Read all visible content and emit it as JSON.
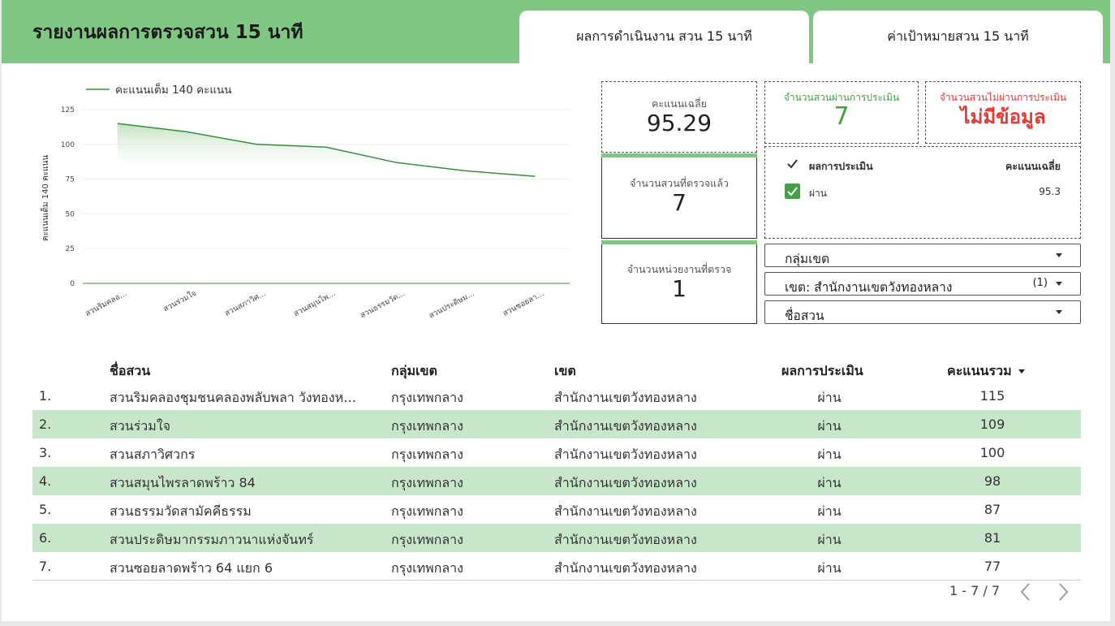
{
  "header": {
    "title": "รายงานผลการตรวจสวน 15 นาที",
    "tabs": [
      {
        "label": "ผลการดำเนินงาน สวน 15 นาที"
      },
      {
        "label": "ค่าเป้าหมายสวน 15 นาที"
      }
    ],
    "bg_color": "#81c784"
  },
  "chart_data": {
    "type": "area",
    "legend": "คะแนนเต็ม 140 คะแนน",
    "ylabel": "คะแนนเต็ม 140 คะแนน",
    "yticks": [
      0,
      25,
      50,
      75,
      100,
      125
    ],
    "ylim": [
      0,
      125
    ],
    "categories": [
      "สวนริมคลอ…",
      "สวนร่วมใจ",
      "สวนสภาวิศ…",
      "สวนสมุนไพ…",
      "สวนธรรมวัด…",
      "สวนประดิษม…",
      "สวนซอยลา…"
    ],
    "series": [
      {
        "name": "คะแนนเต็ม 140 คะแนน",
        "values": [
          115,
          109,
          100,
          98,
          87,
          81,
          77
        ]
      }
    ],
    "color": "#388e3c",
    "grid": true
  },
  "cards": {
    "avg": {
      "label": "คะแนนเฉลี่ย",
      "value": "95.29"
    },
    "pass": {
      "label": "จำนวนสวนผ่านการประเมิน",
      "value": "7",
      "color": "#43a047"
    },
    "fail": {
      "label": "จำนวนสวนไม่ผ่านการประเมิน",
      "value": "ไม่มีข้อมูล",
      "color": "#e53935"
    },
    "checked": {
      "label": "จำนวนสวนที่ตรวจแล้ว",
      "value": "7"
    },
    "units": {
      "label": "จำนวนหน่วยงานที่ตรวจ",
      "value": "1"
    }
  },
  "eval_table": {
    "header_result": "ผลการประเมิน",
    "header_avg": "คะแนนเฉลี่ย",
    "rows": [
      {
        "result": "ผ่าน",
        "avg": "95.3"
      }
    ]
  },
  "filters": {
    "group": {
      "label": "กลุ่มเขต"
    },
    "district": {
      "label": "เขต: สำนักงานเขตวังทองหลาง",
      "count": "(1)"
    },
    "park": {
      "label": "ชื่อสวน"
    }
  },
  "table": {
    "headers": {
      "name": "ชื่อสวน",
      "group": "กลุ่มเขต",
      "district": "เขต",
      "result": "ผลการประเมิน",
      "score": "คะแนนรวม"
    },
    "rows": [
      {
        "no": "1.",
        "name": "สวนริมคลองชุมชนคลองพลับพลา วังทองห…",
        "group": "กรุงเทพกลาง",
        "district": "สำนักงานเขตวังทองหลาง",
        "result": "ผ่าน",
        "score": "115"
      },
      {
        "no": "2.",
        "name": "สวนร่วมใจ",
        "group": "กรุงเทพกลาง",
        "district": "สำนักงานเขตวังทองหลาง",
        "result": "ผ่าน",
        "score": "109"
      },
      {
        "no": "3.",
        "name": "สวนสภาวิศวกร",
        "group": "กรุงเทพกลาง",
        "district": "สำนักงานเขตวังทองหลาง",
        "result": "ผ่าน",
        "score": "100"
      },
      {
        "no": "4.",
        "name": "สวนสมุนไพรลาดพร้าว 84",
        "group": "กรุงเทพกลาง",
        "district": "สำนักงานเขตวังทองหลาง",
        "result": "ผ่าน",
        "score": "98"
      },
      {
        "no": "5.",
        "name": "สวนธรรมวัดสามัคคีธรรม",
        "group": "กรุงเทพกลาง",
        "district": "สำนักงานเขตวังทองหลาง",
        "result": "ผ่าน",
        "score": "87"
      },
      {
        "no": "6.",
        "name": "สวนประดิษมากรรมภาวนาแห่งจันทร์",
        "group": "กรุงเทพกลาง",
        "district": "สำนักงานเขตวังทองหลาง",
        "result": "ผ่าน",
        "score": "81"
      },
      {
        "no": "7.",
        "name": "สวนซอยลาดพร้าว 64 แยก 6",
        "group": "กรุงเทพกลาง",
        "district": "สำนักงานเขตวังทองหลาง",
        "result": "ผ่าน",
        "score": "77"
      }
    ],
    "alt_row_color": "#c8e6c9"
  },
  "pager": {
    "text": "1 - 7 / 7"
  },
  "icons": {
    "prev": "chevron-left-icon",
    "next": "chevron-right-icon",
    "dropdown": "caret-down-icon",
    "check": "check-icon"
  }
}
